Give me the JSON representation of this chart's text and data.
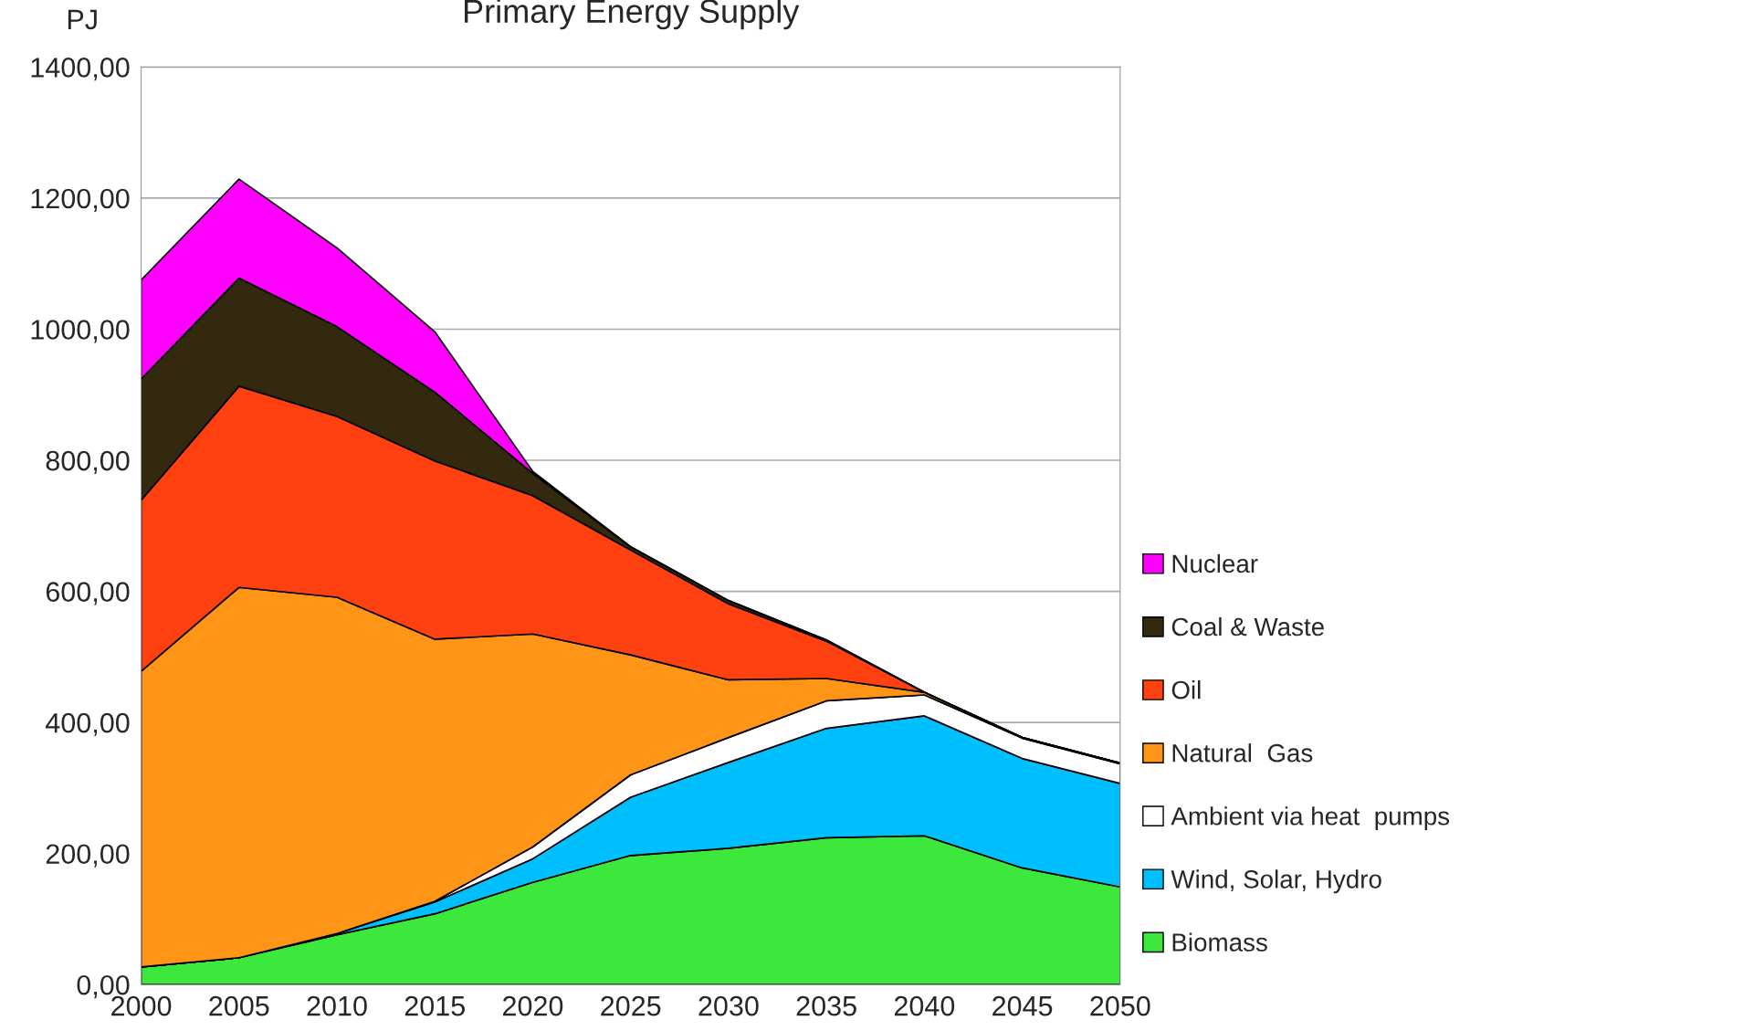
{
  "chart_data": {
    "type": "area",
    "title": "Primary Energy Supply",
    "ylabel": "PJ",
    "stacked": true,
    "x": [
      2000,
      2005,
      2010,
      2015,
      2020,
      2025,
      2030,
      2035,
      2040,
      2045,
      2050
    ],
    "series": [
      {
        "name": "Biomass",
        "color": "#3de83d",
        "values": [
          27,
          41,
          76,
          108,
          156,
          197,
          208,
          224,
          227,
          178,
          149
        ]
      },
      {
        "name": "Wind, Solar, Hydro",
        "color": "#00bfff",
        "values": [
          0,
          0,
          2,
          18,
          36,
          89,
          131,
          167,
          183,
          167,
          158
        ]
      },
      {
        "name": "Ambient via heat  pumps",
        "color": "#ffffff",
        "values": [
          0,
          0,
          0,
          1,
          18,
          34,
          38,
          42,
          32,
          31,
          30
        ]
      },
      {
        "name": "Natural  Gas",
        "color": "#ff9516",
        "values": [
          451,
          565,
          513,
          400,
          325,
          183,
          88,
          34,
          4,
          1,
          1
        ]
      },
      {
        "name": "Oil",
        "color": "#ff4010",
        "values": [
          261,
          307,
          276,
          272,
          211,
          160,
          116,
          57,
          0,
          0,
          0
        ]
      },
      {
        "name": "Coal & Waste",
        "color": "#33290f",
        "values": [
          185,
          165,
          137,
          105,
          34,
          5,
          5,
          2,
          0,
          0,
          0
        ]
      },
      {
        "name": "Nuclear",
        "color": "#ff00ff",
        "values": [
          151,
          151,
          120,
          92,
          3,
          0,
          0,
          0,
          0,
          0,
          0
        ]
      }
    ],
    "xlim": [
      2000,
      2050
    ],
    "xticks": [
      2000,
      2005,
      2010,
      2015,
      2020,
      2025,
      2030,
      2035,
      2040,
      2045,
      2050
    ],
    "ylim": [
      0,
      1400
    ],
    "yticks": [
      {
        "value": 0,
        "label": "0,00"
      },
      {
        "value": 200,
        "label": "200,00"
      },
      {
        "value": 400,
        "label": "400,00"
      },
      {
        "value": 600,
        "label": "600,00"
      },
      {
        "value": 800,
        "label": "800,00"
      },
      {
        "value": 1000,
        "label": "1000,00"
      },
      {
        "value": 1200,
        "label": "1200,00"
      },
      {
        "value": 1400,
        "label": "1400,00"
      }
    ],
    "grid": "y",
    "legend": "right"
  }
}
